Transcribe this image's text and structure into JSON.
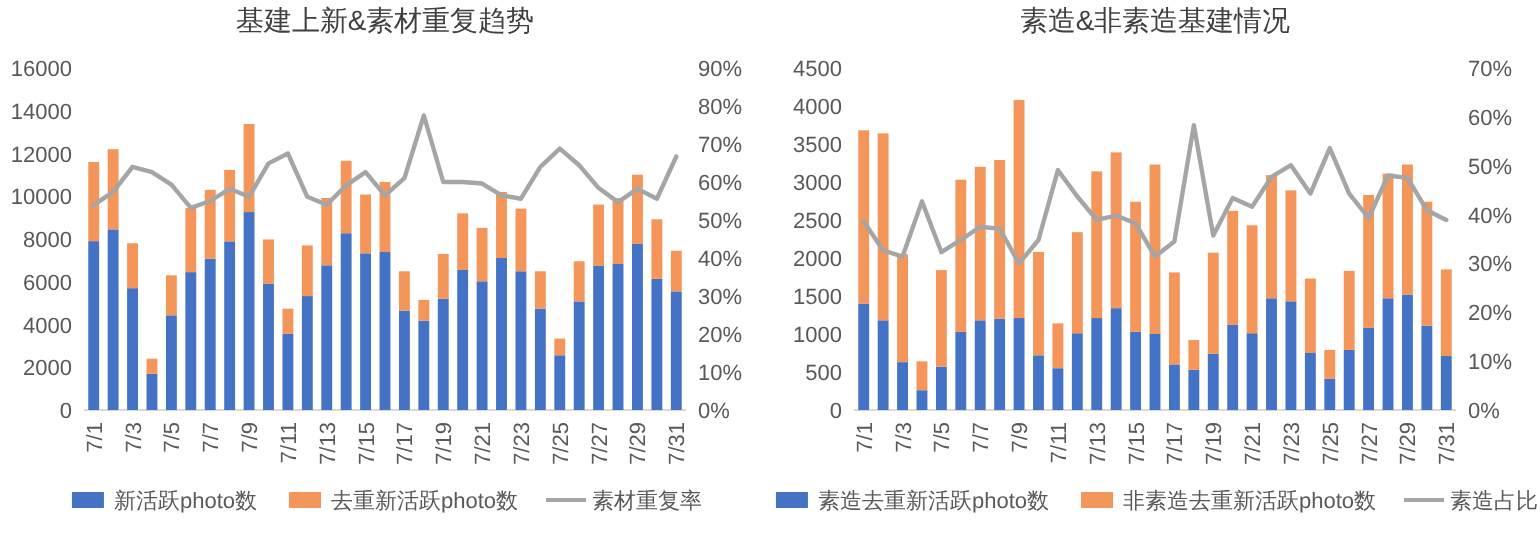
{
  "chart_data": [
    {
      "type": "bar",
      "title": "基建上新&素材重复趋势",
      "stacked": true,
      "legend": "bottom",
      "categories": [
        "7/1",
        null,
        "7/3",
        null,
        "7/5",
        null,
        "7/7",
        null,
        "7/9",
        null,
        "7/11",
        null,
        "7/13",
        null,
        "7/15",
        null,
        "7/17",
        null,
        "7/19",
        null,
        "7/21",
        null,
        "7/23",
        null,
        "7/25",
        null,
        "7/27",
        null,
        "7/29",
        null,
        "7/31"
      ],
      "ylim": [
        0,
        16000
      ],
      "yticks": [
        0,
        2000,
        4000,
        6000,
        8000,
        10000,
        12000,
        14000,
        16000
      ],
      "y2lim": [
        0,
        90
      ],
      "y2ticks": [
        {
          "value": 0,
          "label": "0%"
        },
        {
          "value": 10,
          "label": "10%"
        },
        {
          "value": 20,
          "label": "20%"
        },
        {
          "value": 30,
          "label": "30%"
        },
        {
          "value": 40,
          "label": "40%"
        },
        {
          "value": 50,
          "label": "50%"
        },
        {
          "value": 60,
          "label": "60%"
        },
        {
          "value": 70,
          "label": "70%"
        },
        {
          "value": 80,
          "label": "80%"
        },
        {
          "value": 90,
          "label": "90%"
        }
      ],
      "series": [
        {
          "name": "新活跃photo数",
          "color": "#4472c4",
          "values": [
            7900,
            8450,
            5700,
            1700,
            4430,
            6450,
            7080,
            7890,
            9260,
            5900,
            3560,
            5330,
            6770,
            8270,
            7330,
            7390,
            4650,
            4180,
            5210,
            6550,
            6020,
            7110,
            6490,
            4740,
            2560,
            5080,
            6740,
            6830,
            7770,
            6140,
            5550
          ]
        },
        {
          "name": "去重新活跃photo数",
          "color": "#f4955a",
          "values": [
            3700,
            3750,
            2100,
            700,
            1870,
            3000,
            3220,
            3340,
            4120,
            2080,
            1180,
            2370,
            3150,
            3390,
            2750,
            3280,
            1840,
            970,
            2090,
            2650,
            2500,
            3090,
            2930,
            1750,
            780,
            1880,
            2870,
            3090,
            3240,
            2780,
            1900
          ]
        },
        {
          "name": "素材重复率",
          "type": "line",
          "axis": "y2",
          "color": "#a5a5a5",
          "values": [
            53.9,
            57.4,
            64,
            62.6,
            59.3,
            53.2,
            55,
            58.2,
            56.1,
            64.9,
            67.5,
            56.1,
            54,
            59.1,
            62.6,
            56.5,
            61,
            77.5,
            60,
            60,
            59.6,
            56.5,
            55.6,
            64,
            68.8,
            64.4,
            58.4,
            54.7,
            58.2,
            55.6,
            66.7
          ]
        }
      ]
    },
    {
      "type": "bar",
      "title": "素造&非素造基建情况",
      "stacked": true,
      "legend": "bottom",
      "categories": [
        "7/1",
        null,
        "7/3",
        null,
        "7/5",
        null,
        "7/7",
        null,
        "7/9",
        null,
        "7/11",
        null,
        "7/13",
        null,
        "7/15",
        null,
        "7/17",
        null,
        "7/19",
        null,
        "7/21",
        null,
        "7/23",
        null,
        "7/25",
        null,
        "7/27",
        null,
        "7/29",
        null,
        "7/31"
      ],
      "ylim": [
        0,
        4500
      ],
      "yticks": [
        0,
        500,
        1000,
        1500,
        2000,
        2500,
        3000,
        3500,
        4000,
        4500
      ],
      "y2lim": [
        0,
        70
      ],
      "y2ticks": [
        {
          "value": 0,
          "label": "0%"
        },
        {
          "value": 10,
          "label": "10%"
        },
        {
          "value": 20,
          "label": "20%"
        },
        {
          "value": 30,
          "label": "30%"
        },
        {
          "value": 40,
          "label": "40%"
        },
        {
          "value": 50,
          "label": "50%"
        },
        {
          "value": 60,
          "label": "60%"
        },
        {
          "value": 70,
          "label": "70%"
        }
      ],
      "series": [
        {
          "name": "素造去重新活跃photo数",
          "color": "#4472c4",
          "values": [
            1400,
            1180,
            630,
            260,
            570,
            1030,
            1180,
            1200,
            1210,
            720,
            550,
            1010,
            1210,
            1340,
            1030,
            1000,
            600,
            530,
            740,
            1120,
            1010,
            1470,
            1430,
            750,
            410,
            790,
            1080,
            1470,
            1520,
            1110,
            710
          ]
        },
        {
          "name": "非素造去重新活跃photo数",
          "color": "#f4955a",
          "values": [
            2280,
            2460,
            1420,
            380,
            1270,
            2000,
            2020,
            2090,
            2870,
            1360,
            590,
            1330,
            1930,
            2050,
            1710,
            2230,
            1210,
            390,
            1330,
            1500,
            1420,
            1620,
            1460,
            980,
            380,
            1040,
            1750,
            1640,
            1710,
            1630,
            1140
          ]
        },
        {
          "name": "素造占比",
          "type": "line",
          "axis": "y2",
          "color": "#a5a5a5",
          "values": [
            38.6,
            32.7,
            31.4,
            42.7,
            32.3,
            34.8,
            37.5,
            37.1,
            30,
            34.8,
            49.1,
            43.7,
            38.9,
            39.8,
            38.2,
            31.4,
            34.5,
            58.3,
            35.7,
            43.4,
            41.6,
            47.7,
            50.1,
            44.3,
            53.6,
            44.3,
            39.3,
            48,
            47.5,
            40.9,
            38.9
          ]
        }
      ]
    }
  ]
}
